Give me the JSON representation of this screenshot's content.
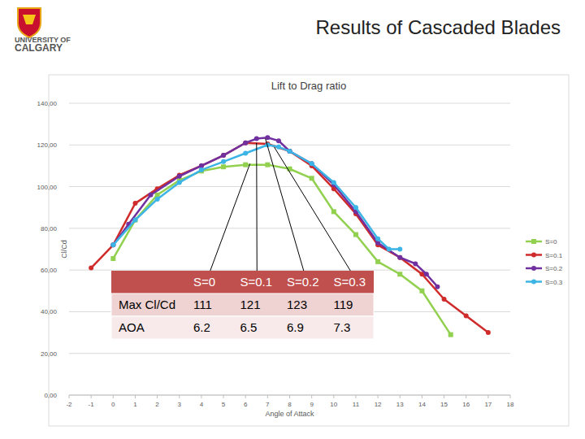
{
  "slide": {
    "title": "Results of Cascaded Blades",
    "logo_lines": [
      "UNIVERSITY OF",
      "CALGARY"
    ]
  },
  "table": {
    "header": [
      "S=0",
      "S=0.1",
      "S=0.2",
      "S=0.3"
    ],
    "rows": [
      {
        "label": "Max Cl/Cd",
        "values": [
          111,
          121,
          123,
          119
        ]
      },
      {
        "label": "AOA",
        "values": [
          6.2,
          6.5,
          6.9,
          7.3
        ]
      }
    ]
  },
  "chart_data": {
    "type": "line",
    "title": "Lift to Drag ratio",
    "x_label": "Angle of Attack",
    "y_label": "Cl/Cd",
    "xlim": [
      -2,
      18
    ],
    "xticks": [
      -2,
      -1,
      0,
      1,
      2,
      3,
      4,
      5,
      6,
      7,
      8,
      9,
      10,
      11,
      12,
      13,
      14,
      15,
      16,
      17,
      18
    ],
    "ylim": [
      0,
      140
    ],
    "yticks": [
      {
        "value": 0,
        "label": "0,00"
      },
      {
        "value": 20,
        "label": "20,00"
      },
      {
        "value": 40,
        "label": "40,00"
      },
      {
        "value": 60,
        "label": "60,00"
      },
      {
        "value": 80,
        "label": "80,00"
      },
      {
        "value": 100,
        "label": "100,00"
      },
      {
        "value": 120,
        "label": "120,00"
      },
      {
        "value": 140,
        "label": "140,00"
      }
    ],
    "grid": true,
    "legend": "right",
    "series": [
      {
        "name": "S=0",
        "color": "#92d050",
        "marker": "square",
        "x": [
          0,
          1,
          2,
          3,
          4,
          5,
          6,
          7,
          8,
          9,
          10,
          11,
          12,
          13,
          14,
          15.3
        ],
        "values": [
          65.5,
          84,
          96,
          103,
          107.5,
          109.5,
          110.5,
          110.5,
          108.5,
          104,
          88,
          77,
          64,
          58,
          50,
          29
        ]
      },
      {
        "name": "S=0.1",
        "color": "#d02b2b",
        "marker": "circle",
        "x": [
          -1,
          0,
          1,
          2,
          3,
          4,
          5,
          6,
          7,
          8,
          9,
          10,
          11,
          12,
          13,
          14,
          15,
          16,
          17
        ],
        "values": [
          61,
          72,
          92,
          99,
          105.5,
          110,
          115,
          121,
          120.5,
          117,
          110,
          99,
          87,
          72,
          66,
          58,
          46,
          38,
          30
        ]
      },
      {
        "name": "S=0.2",
        "color": "#7030a0",
        "marker": "circle",
        "x": [
          0,
          0.7,
          1.7,
          3,
          4,
          5,
          6,
          6.5,
          7,
          7.5,
          8,
          9,
          10,
          11,
          12,
          13,
          13.7,
          14.2,
          14.7
        ],
        "values": [
          72,
          82,
          96,
          105,
          110,
          115,
          121,
          123,
          123.5,
          122,
          117,
          111,
          101,
          88,
          73,
          66,
          63,
          58,
          52
        ]
      },
      {
        "name": "S=0.3",
        "color": "#3cb4e5",
        "marker": "circle",
        "x": [
          0,
          1,
          2,
          3,
          4,
          5,
          6,
          7,
          7.5,
          8,
          9,
          10,
          11,
          12,
          12.5,
          13
        ],
        "values": [
          72,
          84,
          94,
          102,
          108,
          112,
          116,
          120,
          119,
          117,
          111,
          102,
          90,
          75,
          70,
          70
        ]
      }
    ]
  }
}
